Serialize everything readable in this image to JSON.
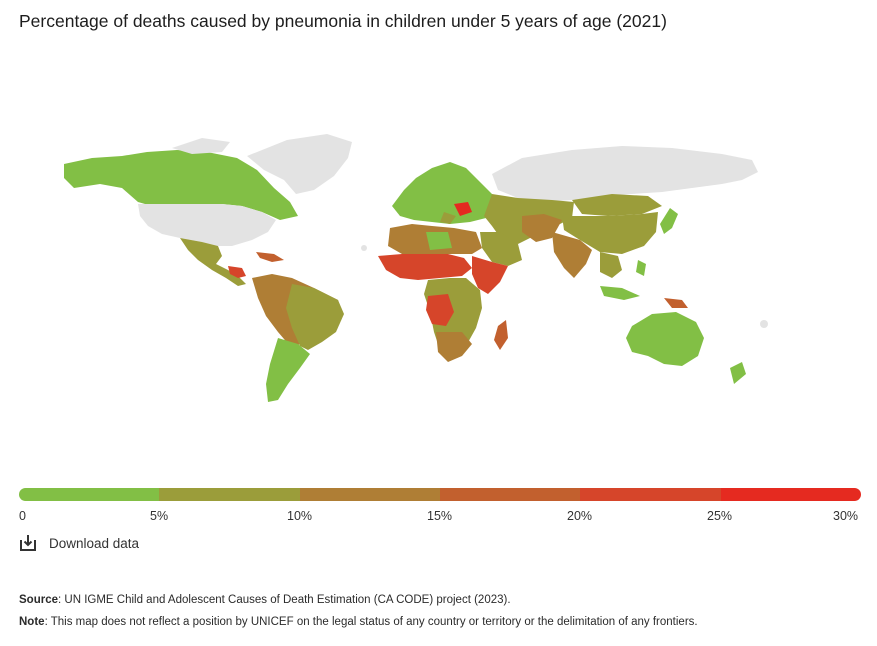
{
  "title": "Percentage of deaths caused by pneumonia in children under 5 years of age (2021)",
  "legend": {
    "colors": [
      "#82bf45",
      "#9b9d3a",
      "#af7e35",
      "#c2602e",
      "#d6452a",
      "#e52a20"
    ],
    "ticks": [
      "0",
      "5%",
      "10%",
      "15%",
      "20%",
      "25%",
      "30%"
    ]
  },
  "no_data_color": "#e3e3e3",
  "download": {
    "icon": "download-icon",
    "label": "Download data"
  },
  "source": {
    "label": "Source",
    "text": ": UN IGME Child and Adolescent Causes of Death Estimation (CA CODE) project (2023)."
  },
  "note": {
    "label": "Note",
    "text": ": This map does not reflect a position by UNICEF on the legal status of any country or territory or the delimitation of any frontiers."
  }
}
